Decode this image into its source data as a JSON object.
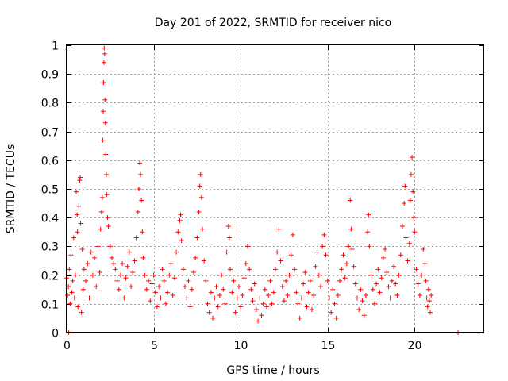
{
  "chart_data": {
    "type": "scatter",
    "title": "Day 201 of 2022, SRMTID for receiver nico",
    "xlabel": "GPS time / hours",
    "ylabel": "SRMTID / TECUs",
    "xlim": [
      0,
      24
    ],
    "ylim": [
      0,
      1
    ],
    "xticks": [
      0,
      5,
      10,
      15,
      20
    ],
    "yticks": [
      0,
      0.1,
      0.2,
      0.3,
      0.4,
      0.5,
      0.6,
      0.7,
      0.8,
      0.9,
      1
    ],
    "ytick_labels": [
      "0",
      "0.1",
      "0.2",
      "0.3",
      "0.4",
      "0.5",
      "0.6",
      "0.7",
      "0.8",
      "0.9",
      "1"
    ],
    "grid": true,
    "marker": "+",
    "color": "#ff0000",
    "series": [
      {
        "name": "SRMTID",
        "points": [
          [
            0.0,
            0.19
          ],
          [
            0.05,
            0.13
          ],
          [
            0.1,
            0.16
          ],
          [
            0.12,
            0.0
          ],
          [
            0.15,
            0.22
          ],
          [
            0.2,
            0.1
          ],
          [
            0.25,
            0.27
          ],
          [
            0.3,
            0.14
          ],
          [
            0.35,
            0.18
          ],
          [
            0.4,
            0.33
          ],
          [
            0.45,
            0.12
          ],
          [
            0.5,
            0.2
          ],
          [
            0.55,
            0.49
          ],
          [
            0.6,
            0.41
          ],
          [
            0.62,
            0.35
          ],
          [
            0.65,
            0.09
          ],
          [
            0.7,
            0.44
          ],
          [
            0.75,
            0.53
          ],
          [
            0.78,
            0.54
          ],
          [
            0.8,
            0.38
          ],
          [
            0.85,
            0.07
          ],
          [
            0.9,
            0.29
          ],
          [
            0.95,
            0.15
          ],
          [
            1.0,
            0.22
          ],
          [
            1.1,
            0.18
          ],
          [
            1.2,
            0.24
          ],
          [
            1.3,
            0.12
          ],
          [
            1.4,
            0.28
          ],
          [
            1.5,
            0.2
          ],
          [
            1.6,
            0.26
          ],
          [
            1.7,
            0.16
          ],
          [
            1.8,
            0.3
          ],
          [
            1.9,
            0.21
          ],
          [
            1.95,
            0.36
          ],
          [
            2.0,
            0.42
          ],
          [
            2.05,
            0.47
          ],
          [
            2.08,
            0.67
          ],
          [
            2.1,
            0.77
          ],
          [
            2.12,
            0.87
          ],
          [
            2.14,
            0.94
          ],
          [
            2.16,
            0.99
          ],
          [
            2.18,
            0.97
          ],
          [
            2.2,
            0.81
          ],
          [
            2.22,
            0.73
          ],
          [
            2.25,
            0.62
          ],
          [
            2.28,
            0.55
          ],
          [
            2.3,
            0.48
          ],
          [
            2.35,
            0.4
          ],
          [
            2.4,
            0.37
          ],
          [
            2.5,
            0.3
          ],
          [
            2.6,
            0.26
          ],
          [
            2.7,
            0.24
          ],
          [
            2.8,
            0.22
          ],
          [
            2.9,
            0.18
          ],
          [
            3.0,
            0.15
          ],
          [
            3.1,
            0.2
          ],
          [
            3.2,
            0.24
          ],
          [
            3.3,
            0.12
          ],
          [
            3.4,
            0.19
          ],
          [
            3.5,
            0.23
          ],
          [
            3.6,
            0.28
          ],
          [
            3.7,
            0.16
          ],
          [
            3.8,
            0.21
          ],
          [
            3.9,
            0.25
          ],
          [
            4.0,
            0.33
          ],
          [
            4.1,
            0.42
          ],
          [
            4.15,
            0.5
          ],
          [
            4.2,
            0.59
          ],
          [
            4.25,
            0.55
          ],
          [
            4.3,
            0.46
          ],
          [
            4.35,
            0.35
          ],
          [
            4.4,
            0.26
          ],
          [
            4.5,
            0.2
          ],
          [
            4.6,
            0.15
          ],
          [
            4.7,
            0.18
          ],
          [
            4.8,
            0.11
          ],
          [
            4.9,
            0.17
          ],
          [
            5.0,
            0.2
          ],
          [
            5.1,
            0.14
          ],
          [
            5.2,
            0.09
          ],
          [
            5.3,
            0.16
          ],
          [
            5.4,
            0.12
          ],
          [
            5.5,
            0.22
          ],
          [
            5.6,
            0.18
          ],
          [
            5.7,
            0.1
          ],
          [
            5.8,
            0.14
          ],
          [
            5.9,
            0.2
          ],
          [
            6.0,
            0.24
          ],
          [
            6.1,
            0.13
          ],
          [
            6.2,
            0.19
          ],
          [
            6.3,
            0.28
          ],
          [
            6.4,
            0.35
          ],
          [
            6.5,
            0.39
          ],
          [
            6.55,
            0.41
          ],
          [
            6.6,
            0.32
          ],
          [
            6.7,
            0.22
          ],
          [
            6.8,
            0.16
          ],
          [
            6.9,
            0.12
          ],
          [
            7.0,
            0.18
          ],
          [
            7.1,
            0.09
          ],
          [
            7.2,
            0.15
          ],
          [
            7.3,
            0.21
          ],
          [
            7.4,
            0.26
          ],
          [
            7.5,
            0.33
          ],
          [
            7.6,
            0.42
          ],
          [
            7.65,
            0.51
          ],
          [
            7.7,
            0.55
          ],
          [
            7.75,
            0.47
          ],
          [
            7.8,
            0.36
          ],
          [
            7.9,
            0.25
          ],
          [
            8.0,
            0.18
          ],
          [
            8.1,
            0.1
          ],
          [
            8.2,
            0.07
          ],
          [
            8.3,
            0.14
          ],
          [
            8.4,
            0.05
          ],
          [
            8.5,
            0.12
          ],
          [
            8.6,
            0.16
          ],
          [
            8.7,
            0.09
          ],
          [
            8.8,
            0.13
          ],
          [
            8.9,
            0.2
          ],
          [
            9.0,
            0.15
          ],
          [
            9.1,
            0.1
          ],
          [
            9.2,
            0.28
          ],
          [
            9.3,
            0.37
          ],
          [
            9.35,
            0.33
          ],
          [
            9.4,
            0.22
          ],
          [
            9.5,
            0.14
          ],
          [
            9.6,
            0.18
          ],
          [
            9.7,
            0.07
          ],
          [
            9.8,
            0.12
          ],
          [
            9.9,
            0.16
          ],
          [
            10.0,
            0.09
          ],
          [
            10.1,
            0.13
          ],
          [
            10.2,
            0.19
          ],
          [
            10.3,
            0.24
          ],
          [
            10.4,
            0.3
          ],
          [
            10.5,
            0.22
          ],
          [
            10.6,
            0.15
          ],
          [
            10.7,
            0.11
          ],
          [
            10.8,
            0.17
          ],
          [
            10.9,
            0.08
          ],
          [
            11.0,
            0.04
          ],
          [
            11.1,
            0.12
          ],
          [
            11.2,
            0.06
          ],
          [
            11.3,
            0.1
          ],
          [
            11.4,
            0.15
          ],
          [
            11.5,
            0.09
          ],
          [
            11.6,
            0.13
          ],
          [
            11.7,
            0.18
          ],
          [
            11.8,
            0.1
          ],
          [
            11.9,
            0.14
          ],
          [
            12.0,
            0.22
          ],
          [
            12.1,
            0.28
          ],
          [
            12.2,
            0.36
          ],
          [
            12.3,
            0.25
          ],
          [
            12.4,
            0.16
          ],
          [
            12.5,
            0.11
          ],
          [
            12.6,
            0.18
          ],
          [
            12.7,
            0.13
          ],
          [
            12.8,
            0.2
          ],
          [
            12.9,
            0.27
          ],
          [
            13.0,
            0.34
          ],
          [
            13.1,
            0.22
          ],
          [
            13.2,
            0.14
          ],
          [
            13.3,
            0.1
          ],
          [
            13.4,
            0.05
          ],
          [
            13.5,
            0.12
          ],
          [
            13.6,
            0.17
          ],
          [
            13.7,
            0.21
          ],
          [
            13.8,
            0.09
          ],
          [
            13.9,
            0.14
          ],
          [
            14.0,
            0.18
          ],
          [
            14.1,
            0.08
          ],
          [
            14.2,
            0.13
          ],
          [
            14.3,
            0.23
          ],
          [
            14.4,
            0.28
          ],
          [
            14.5,
            0.2
          ],
          [
            14.6,
            0.16
          ],
          [
            14.7,
            0.3
          ],
          [
            14.8,
            0.34
          ],
          [
            14.9,
            0.27
          ],
          [
            15.0,
            0.18
          ],
          [
            15.1,
            0.12
          ],
          [
            15.2,
            0.07
          ],
          [
            15.3,
            0.15
          ],
          [
            15.4,
            0.1
          ],
          [
            15.5,
            0.05
          ],
          [
            15.6,
            0.13
          ],
          [
            15.7,
            0.18
          ],
          [
            15.8,
            0.22
          ],
          [
            15.9,
            0.27
          ],
          [
            16.0,
            0.19
          ],
          [
            16.1,
            0.24
          ],
          [
            16.2,
            0.3
          ],
          [
            16.3,
            0.46
          ],
          [
            16.35,
            0.36
          ],
          [
            16.4,
            0.29
          ],
          [
            16.5,
            0.23
          ],
          [
            16.6,
            0.17
          ],
          [
            16.7,
            0.12
          ],
          [
            16.8,
            0.08
          ],
          [
            16.9,
            0.15
          ],
          [
            17.0,
            0.11
          ],
          [
            17.1,
            0.06
          ],
          [
            17.2,
            0.13
          ],
          [
            17.3,
            0.35
          ],
          [
            17.35,
            0.41
          ],
          [
            17.4,
            0.3
          ],
          [
            17.5,
            0.2
          ],
          [
            17.6,
            0.15
          ],
          [
            17.7,
            0.1
          ],
          [
            17.8,
            0.17
          ],
          [
            17.9,
            0.22
          ],
          [
            18.0,
            0.14
          ],
          [
            18.1,
            0.19
          ],
          [
            18.2,
            0.26
          ],
          [
            18.3,
            0.29
          ],
          [
            18.4,
            0.21
          ],
          [
            18.5,
            0.16
          ],
          [
            18.6,
            0.12
          ],
          [
            18.7,
            0.18
          ],
          [
            18.8,
            0.23
          ],
          [
            18.9,
            0.17
          ],
          [
            19.0,
            0.13
          ],
          [
            19.1,
            0.2
          ],
          [
            19.2,
            0.27
          ],
          [
            19.3,
            0.37
          ],
          [
            19.4,
            0.45
          ],
          [
            19.45,
            0.51
          ],
          [
            19.5,
            0.33
          ],
          [
            19.6,
            0.25
          ],
          [
            19.7,
            0.31
          ],
          [
            19.75,
            0.46
          ],
          [
            19.8,
            0.55
          ],
          [
            19.85,
            0.61
          ],
          [
            19.9,
            0.49
          ],
          [
            19.95,
            0.4
          ],
          [
            20.0,
            0.35
          ],
          [
            20.1,
            0.22
          ],
          [
            20.2,
            0.17
          ],
          [
            20.3,
            0.13
          ],
          [
            20.4,
            0.2
          ],
          [
            20.5,
            0.29
          ],
          [
            20.6,
            0.24
          ],
          [
            20.65,
            0.18
          ],
          [
            20.7,
            0.12
          ],
          [
            20.75,
            0.09
          ],
          [
            20.8,
            0.15
          ],
          [
            20.85,
            0.11
          ],
          [
            20.9,
            0.07
          ],
          [
            20.95,
            0.13
          ],
          [
            22.5,
            0.0
          ]
        ]
      }
    ]
  }
}
